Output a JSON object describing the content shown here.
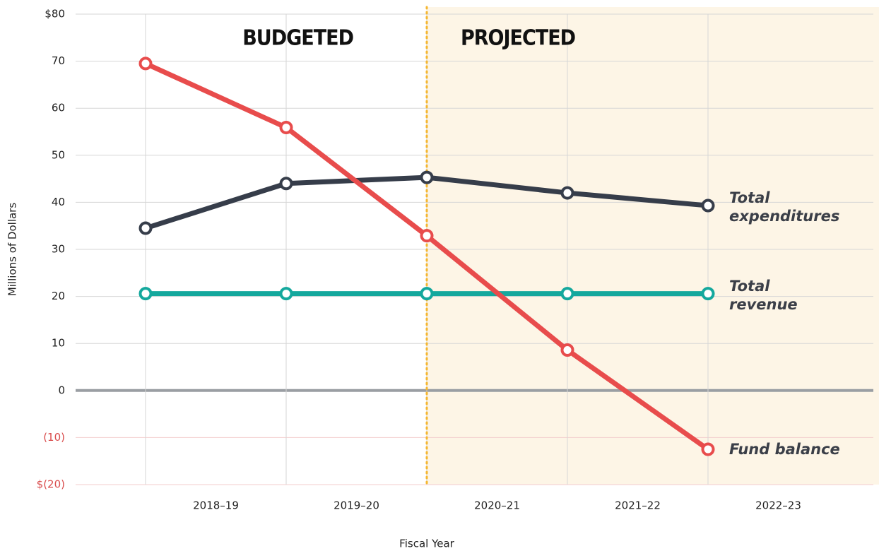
{
  "chart_data": {
    "type": "line",
    "x_label": "Fiscal Year",
    "y_label": "Millions of Dollars",
    "annotations": [
      "BUDGETED",
      "PROJECTED"
    ],
    "categories": [
      "2018–19",
      "2019–20",
      "2020–21",
      "2021–22",
      "2022–23"
    ],
    "series": [
      {
        "name": "Total expenditures",
        "color": "#363d4a",
        "values": [
          34.5,
          44,
          45.3,
          42,
          39.3
        ]
      },
      {
        "name": "Total revenue",
        "color": "#14a89d",
        "values": [
          20.6,
          20.6,
          20.6,
          20.6,
          20.6
        ]
      },
      {
        "name": "Fund balance",
        "color": "#e84c4c",
        "values": [
          69.5,
          55.9,
          32.9,
          8.6,
          -12.5
        ]
      }
    ],
    "ylim": [
      -20,
      80
    ],
    "yticks": [
      {
        "value": -20,
        "label": "$(20)"
      },
      {
        "value": -10,
        "label": "(10)"
      },
      0,
      10,
      20,
      30,
      40,
      50,
      60,
      70,
      {
        "value": 80,
        "label": "$80"
      }
    ],
    "grid": true
  }
}
